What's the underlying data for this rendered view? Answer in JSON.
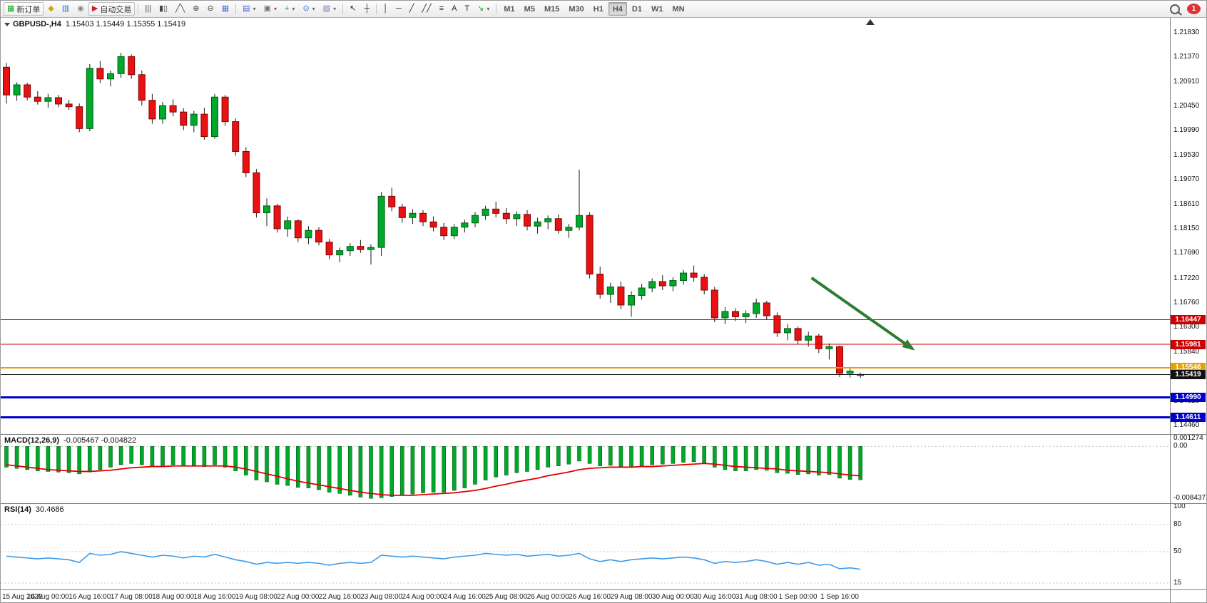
{
  "toolbar": {
    "badge": "1",
    "items": [
      {
        "name": "new-order-button",
        "glyph": "▦",
        "color": "#1fa32a",
        "label": "新订单",
        "framed": true
      },
      {
        "name": "market-watch-icon",
        "glyph": "◆",
        "color": "#d9a400"
      },
      {
        "name": "data-window-icon",
        "glyph": "▥",
        "color": "#3a6ad0"
      },
      {
        "name": "navigator-icon",
        "glyph": "◉",
        "color": "#8a8a8a"
      },
      {
        "name": "auto-trading-button",
        "glyph": "▶",
        "color": "#cf2222",
        "label": "自动交易",
        "framed": true
      },
      {
        "name": "toolbar-separator",
        "kind": "sep"
      },
      {
        "name": "bar-chart-icon",
        "glyph": "|||",
        "color": "#444"
      },
      {
        "name": "candlestick-chart-icon",
        "glyph": "▮▯",
        "color": "#444"
      },
      {
        "name": "line-chart-icon",
        "glyph": "╱╲",
        "color": "#444"
      },
      {
        "name": "zoom-in-icon",
        "glyph": "⊕",
        "color": "#444"
      },
      {
        "name": "zoom-out-icon",
        "glyph": "⊖",
        "color": "#444"
      },
      {
        "name": "tile-windows-icon",
        "glyph": "▦",
        "color": "#4a7ad0"
      },
      {
        "name": "toolbar-separator",
        "kind": "sep"
      },
      {
        "name": "new-chart-icon",
        "glyph": "▤",
        "color": "#3a6ad0",
        "dropdown": true
      },
      {
        "name": "profiles-icon",
        "glyph": "▣",
        "color": "#777777",
        "dropdown": true
      },
      {
        "name": "indicators-icon",
        "glyph": "+",
        "color": "#1da02a",
        "dropdown": true
      },
      {
        "name": "periods-icon",
        "glyph": "⊙",
        "color": "#3a6ad0",
        "dropdown": true
      },
      {
        "name": "templates-icon",
        "glyph": "▧",
        "color": "#8a6ac0",
        "dropdown": true
      },
      {
        "name": "toolbar-separator",
        "kind": "sep"
      },
      {
        "name": "cursor-icon",
        "glyph": "↖",
        "color": "#222"
      },
      {
        "name": "crosshair-icon",
        "glyph": "┼",
        "color": "#222"
      },
      {
        "name": "toolbar-separator",
        "kind": "sep"
      },
      {
        "name": "vertical-line-icon",
        "glyph": "│",
        "color": "#222"
      },
      {
        "name": "horizontal-line-icon",
        "glyph": "─",
        "color": "#222"
      },
      {
        "name": "trendline-icon",
        "glyph": "╱",
        "color": "#222"
      },
      {
        "name": "channel-icon",
        "glyph": "╱╱",
        "color": "#222"
      },
      {
        "name": "fibonacci-icon",
        "glyph": "≡",
        "color": "#222"
      },
      {
        "name": "text-icon",
        "glyph": "A",
        "color": "#222"
      },
      {
        "name": "label-icon",
        "glyph": "T",
        "color": "#222"
      },
      {
        "name": "arrows-icon",
        "glyph": "↘",
        "color": "#1da02a",
        "dropdown": true
      },
      {
        "name": "toolbar-separator",
        "kind": "sep"
      },
      {
        "name": "tf-m1",
        "kind": "tf",
        "label": "M1"
      },
      {
        "name": "tf-m5",
        "kind": "tf",
        "label": "M5"
      },
      {
        "name": "tf-m15",
        "kind": "tf",
        "label": "M15"
      },
      {
        "name": "tf-m30",
        "kind": "tf",
        "label": "M30"
      },
      {
        "name": "tf-h1",
        "kind": "tf",
        "label": "H1"
      },
      {
        "name": "tf-h4",
        "kind": "tf",
        "label": "H4",
        "active": true
      },
      {
        "name": "tf-d1",
        "kind": "tf",
        "label": "D1"
      },
      {
        "name": "tf-w1",
        "kind": "tf",
        "label": "W1"
      },
      {
        "name": "tf-mn",
        "kind": "tf",
        "label": "MN"
      }
    ]
  },
  "chart_data": [
    {
      "type": "candlestick",
      "symbol_period": "GBPUSD-,H4",
      "ohlc_text": "1.15403 1.15449 1.15355 1.15419",
      "ohlc": {
        "open": "1.15403",
        "high": "1.15449",
        "low": "1.15355",
        "close": "1.15419"
      },
      "ylim": [
        1.143,
        1.2212
      ],
      "layout": {
        "left": 8,
        "spacing": 14.6,
        "body_width": 9
      },
      "colors": {
        "up": "#00a92c",
        "down": "#e81212",
        "up_border": "#005f14",
        "down_border": "#7e0606",
        "wick": "#1a1a1a"
      },
      "y_ticks": [
        "1.21830",
        "1.21370",
        "1.20910",
        "1.20450",
        "1.19990",
        "1.19530",
        "1.19070",
        "1.18610",
        "1.18150",
        "1.17690",
        "1.17220",
        "1.16760",
        "1.16300",
        "1.15840",
        "1.14920",
        "1.14460"
      ],
      "x_labels": [
        {
          "i": 0,
          "t": "15 Aug 2022"
        },
        {
          "i": 4,
          "t": "16 Aug 00:00"
        },
        {
          "i": 8,
          "t": "16 Aug 16:00"
        },
        {
          "i": 12,
          "t": "17 Aug 08:00"
        },
        {
          "i": 16,
          "t": "18 Aug 00:00"
        },
        {
          "i": 20,
          "t": "18 Aug 16:00"
        },
        {
          "i": 24,
          "t": "19 Aug 08:00"
        },
        {
          "i": 28,
          "t": "22 Aug 00:00"
        },
        {
          "i": 32,
          "t": "22 Aug 16:00"
        },
        {
          "i": 36,
          "t": "23 Aug 08:00"
        },
        {
          "i": 40,
          "t": "24 Aug 00:00"
        },
        {
          "i": 44,
          "t": "24 Aug 16:00"
        },
        {
          "i": 48,
          "t": "25 Aug 08:00"
        },
        {
          "i": 52,
          "t": "26 Aug 00:00"
        },
        {
          "i": 56,
          "t": "26 Aug 16:00"
        },
        {
          "i": 60,
          "t": "29 Aug 08:00"
        },
        {
          "i": 64,
          "t": "30 Aug 00:00"
        },
        {
          "i": 68,
          "t": "30 Aug 16:00"
        },
        {
          "i": 72,
          "t": "31 Aug 08:00"
        },
        {
          "i": 76,
          "t": "1 Sep 00:00"
        },
        {
          "i": 80,
          "t": "1 Sep 16:00"
        }
      ],
      "hlines": [
        {
          "price": 1.16447,
          "label": "1.16447",
          "color": "#cc0000",
          "width": 1
        },
        {
          "price": 1.15981,
          "label": "1.15981",
          "color": "#cc0000",
          "width": 1
        },
        {
          "price": 1.15546,
          "label": "1.15546",
          "color": "#e6a000",
          "width": 2
        },
        {
          "price": 1.15419,
          "label": "1.15419",
          "color": "#111111",
          "width": 1,
          "current": true
        },
        {
          "price": 1.1499,
          "label": "1.14990",
          "color": "#0000cc",
          "width": 3
        },
        {
          "price": 1.14611,
          "label": "1.14611",
          "color": "#0000cc",
          "width": 3
        }
      ],
      "arrow": {
        "i1": 77.3,
        "p1": 1.1723,
        "i2": 87,
        "p2": 1.159,
        "color": "#2e7d32"
      },
      "candles": [
        [
          1.2118,
          1.2126,
          1.205,
          1.2066
        ],
        [
          1.2066,
          1.209,
          1.2055,
          1.2085
        ],
        [
          1.2085,
          1.2089,
          1.2056,
          1.2062
        ],
        [
          1.2062,
          1.2073,
          1.2048,
          1.2054
        ],
        [
          1.2054,
          1.2068,
          1.2042,
          1.2061
        ],
        [
          1.2061,
          1.2066,
          1.2043,
          1.2049
        ],
        [
          1.2049,
          1.2057,
          1.2038,
          1.2044
        ],
        [
          1.2044,
          1.205,
          1.1996,
          1.2003
        ],
        [
          1.2003,
          1.2124,
          1.1998,
          1.2116
        ],
        [
          1.2116,
          1.213,
          1.2088,
          1.2096
        ],
        [
          1.2096,
          1.2112,
          1.2082,
          1.2106
        ],
        [
          1.2106,
          1.2145,
          1.2098,
          1.2138
        ],
        [
          1.2138,
          1.2142,
          1.2096,
          1.2104
        ],
        [
          1.2104,
          1.2112,
          1.2046,
          1.2056
        ],
        [
          1.2056,
          1.2068,
          1.2012,
          1.2021
        ],
        [
          1.2021,
          1.2053,
          1.2012,
          1.2046
        ],
        [
          1.2046,
          1.2058,
          1.2026,
          1.2034
        ],
        [
          1.2034,
          1.2041,
          1.2,
          1.2009
        ],
        [
          1.2009,
          1.2036,
          1.1996,
          1.203
        ],
        [
          1.203,
          1.2042,
          1.1982,
          1.1988
        ],
        [
          1.1988,
          1.2068,
          1.1984,
          1.2062
        ],
        [
          1.2062,
          1.2066,
          1.2008,
          1.2016
        ],
        [
          1.2016,
          1.2022,
          1.1952,
          1.196
        ],
        [
          1.196,
          1.1968,
          1.1912,
          1.192
        ],
        [
          1.192,
          1.1927,
          1.1836,
          1.1845
        ],
        [
          1.1845,
          1.1872,
          1.182,
          1.1858
        ],
        [
          1.1858,
          1.1862,
          1.1808,
          1.1815
        ],
        [
          1.1815,
          1.1838,
          1.18,
          1.183
        ],
        [
          1.183,
          1.1833,
          1.179,
          1.1798
        ],
        [
          1.1798,
          1.182,
          1.1786,
          1.1812
        ],
        [
          1.1812,
          1.1818,
          1.1784,
          1.179
        ],
        [
          1.179,
          1.1796,
          1.1758,
          1.1766
        ],
        [
          1.1766,
          1.178,
          1.1752,
          1.1774
        ],
        [
          1.1774,
          1.1788,
          1.1764,
          1.1782
        ],
        [
          1.1782,
          1.1794,
          1.177,
          1.1776
        ],
        [
          1.1776,
          1.1786,
          1.1748,
          1.178
        ],
        [
          1.178,
          1.1884,
          1.1764,
          1.1876
        ],
        [
          1.1876,
          1.1892,
          1.1848,
          1.1856
        ],
        [
          1.1856,
          1.1862,
          1.1826,
          1.1836
        ],
        [
          1.1836,
          1.1852,
          1.1824,
          1.1844
        ],
        [
          1.1844,
          1.185,
          1.182,
          1.1828
        ],
        [
          1.1828,
          1.1838,
          1.181,
          1.1818
        ],
        [
          1.1818,
          1.1826,
          1.1794,
          1.1802
        ],
        [
          1.1802,
          1.1824,
          1.1796,
          1.1818
        ],
        [
          1.1818,
          1.1832,
          1.1808,
          1.1826
        ],
        [
          1.1826,
          1.1846,
          1.1818,
          1.184
        ],
        [
          1.184,
          1.1858,
          1.1832,
          1.1852
        ],
        [
          1.1852,
          1.1866,
          1.1836,
          1.1844
        ],
        [
          1.1844,
          1.1854,
          1.1824,
          1.1834
        ],
        [
          1.1834,
          1.1848,
          1.182,
          1.1842
        ],
        [
          1.1842,
          1.185,
          1.1812,
          1.182
        ],
        [
          1.182,
          1.1836,
          1.1806,
          1.1828
        ],
        [
          1.1828,
          1.184,
          1.1814,
          1.1834
        ],
        [
          1.1834,
          1.1842,
          1.1806,
          1.1812
        ],
        [
          1.1812,
          1.1824,
          1.1798,
          1.1818
        ],
        [
          1.1818,
          1.1926,
          1.1812,
          1.184
        ],
        [
          1.184,
          1.1846,
          1.1722,
          1.173
        ],
        [
          1.173,
          1.1744,
          1.1684,
          1.1692
        ],
        [
          1.1692,
          1.1714,
          1.1676,
          1.1706
        ],
        [
          1.1706,
          1.1716,
          1.1664,
          1.1672
        ],
        [
          1.1672,
          1.1698,
          1.165,
          1.169
        ],
        [
          1.169,
          1.1712,
          1.1682,
          1.1704
        ],
        [
          1.1704,
          1.1722,
          1.1696,
          1.1716
        ],
        [
          1.1716,
          1.1728,
          1.17,
          1.1708
        ],
        [
          1.1708,
          1.1724,
          1.1698,
          1.1718
        ],
        [
          1.1718,
          1.1738,
          1.171,
          1.1732
        ],
        [
          1.1732,
          1.1746,
          1.1716,
          1.1724
        ],
        [
          1.1724,
          1.173,
          1.1692,
          1.17
        ],
        [
          1.17,
          1.1706,
          1.164,
          1.1648
        ],
        [
          1.1648,
          1.1668,
          1.1636,
          1.166
        ],
        [
          1.166,
          1.1666,
          1.1642,
          1.165
        ],
        [
          1.165,
          1.1662,
          1.1638,
          1.1656
        ],
        [
          1.1656,
          1.1684,
          1.1648,
          1.1676
        ],
        [
          1.1676,
          1.168,
          1.1644,
          1.1652
        ],
        [
          1.1652,
          1.1658,
          1.1612,
          1.162
        ],
        [
          1.162,
          1.1636,
          1.1606,
          1.1628
        ],
        [
          1.1628,
          1.1632,
          1.1598,
          1.1606
        ],
        [
          1.1606,
          1.1622,
          1.1594,
          1.1614
        ],
        [
          1.1614,
          1.1618,
          1.1582,
          1.159
        ],
        [
          1.159,
          1.16,
          1.157,
          1.1594
        ],
        [
          1.1594,
          1.1596,
          1.1537,
          1.1544
        ],
        [
          1.1544,
          1.1556,
          1.1536,
          1.1548
        ],
        [
          1.15403,
          1.15449,
          1.15355,
          1.15419
        ]
      ]
    },
    {
      "type": "macd",
      "label": "MACD(12,26,9)",
      "values_text": "-0.005467 -0.004822",
      "ylim": [
        -0.0093,
        0.0019
      ],
      "ticks": [
        {
          "v": 0.001274,
          "t": "0.001274"
        },
        {
          "v": 0,
          "t": "0.00"
        },
        {
          "v": -0.008437,
          "t": "-0.008437"
        }
      ],
      "colors": {
        "histogram": "#00a92c",
        "histogram_border": "#005f14",
        "signal": "#e00000"
      },
      "histogram": [
        -0.0034,
        -0.0036,
        -0.0038,
        -0.004,
        -0.0041,
        -0.0042,
        -0.0043,
        -0.0045,
        -0.0042,
        -0.0038,
        -0.0034,
        -0.003,
        -0.0028,
        -0.003,
        -0.0033,
        -0.0032,
        -0.003,
        -0.0032,
        -0.0031,
        -0.0033,
        -0.003,
        -0.0034,
        -0.004,
        -0.0047,
        -0.0055,
        -0.0058,
        -0.0062,
        -0.0064,
        -0.0067,
        -0.0068,
        -0.0071,
        -0.0075,
        -0.0077,
        -0.008,
        -0.0083,
        -0.0085,
        -0.0084,
        -0.0082,
        -0.008,
        -0.0078,
        -0.0076,
        -0.0075,
        -0.0075,
        -0.0072,
        -0.0068,
        -0.0062,
        -0.0055,
        -0.005,
        -0.0047,
        -0.0043,
        -0.0041,
        -0.0038,
        -0.0034,
        -0.0032,
        -0.0029,
        -0.0024,
        -0.0028,
        -0.0032,
        -0.0031,
        -0.0033,
        -0.0034,
        -0.0032,
        -0.003,
        -0.0029,
        -0.0028,
        -0.0026,
        -0.0025,
        -0.0027,
        -0.0034,
        -0.0038,
        -0.004,
        -0.004,
        -0.0038,
        -0.0039,
        -0.0043,
        -0.0044,
        -0.0046,
        -0.0045,
        -0.0047,
        -0.0046,
        -0.0052,
        -0.0054,
        -0.005467
      ],
      "signal": [
        -0.003,
        -0.0032,
        -0.0034,
        -0.0036,
        -0.0038,
        -0.0039,
        -0.004,
        -0.0041,
        -0.0041,
        -0.004,
        -0.0039,
        -0.0037,
        -0.0035,
        -0.0034,
        -0.0033,
        -0.0033,
        -0.0032,
        -0.0032,
        -0.0032,
        -0.0032,
        -0.0032,
        -0.0032,
        -0.0034,
        -0.0037,
        -0.0041,
        -0.0045,
        -0.0049,
        -0.0053,
        -0.0057,
        -0.006,
        -0.0063,
        -0.0066,
        -0.0069,
        -0.0072,
        -0.0075,
        -0.0077,
        -0.0079,
        -0.008,
        -0.008,
        -0.008,
        -0.0079,
        -0.0078,
        -0.0077,
        -0.0076,
        -0.0074,
        -0.0072,
        -0.0069,
        -0.0065,
        -0.0062,
        -0.0058,
        -0.0055,
        -0.0052,
        -0.0048,
        -0.0045,
        -0.0042,
        -0.0038,
        -0.0036,
        -0.0035,
        -0.0034,
        -0.0034,
        -0.0034,
        -0.0033,
        -0.0033,
        -0.0032,
        -0.0031,
        -0.003,
        -0.0029,
        -0.0028,
        -0.0029,
        -0.0031,
        -0.0033,
        -0.0034,
        -0.0035,
        -0.0036,
        -0.0037,
        -0.0039,
        -0.004,
        -0.0041,
        -0.0042,
        -0.0043,
        -0.0045,
        -0.0047,
        -0.004822
      ]
    },
    {
      "type": "rsi",
      "label": "RSI(14)",
      "value_text": "30.4686",
      "ylim": [
        8,
        103
      ],
      "ticks": [
        {
          "v": 100,
          "t": "100"
        },
        {
          "v": 80,
          "t": "80"
        },
        {
          "v": 50,
          "t": "50"
        },
        {
          "v": 15,
          "t": "15"
        }
      ],
      "levels": [
        80,
        50,
        15
      ],
      "color": "#3d9be9",
      "values": [
        45,
        44,
        43,
        42,
        43,
        42,
        41,
        38,
        48,
        46,
        47,
        50,
        48,
        46,
        44,
        46,
        45,
        43,
        45,
        44,
        47,
        44,
        41,
        39,
        36,
        38,
        37,
        38,
        37,
        38,
        37,
        35,
        37,
        38,
        37,
        38,
        46,
        45,
        44,
        45,
        44,
        43,
        42,
        44,
        45,
        46,
        48,
        47,
        46,
        47,
        45,
        46,
        47,
        45,
        46,
        48,
        42,
        39,
        41,
        39,
        41,
        42,
        43,
        42,
        43,
        44,
        43,
        41,
        37,
        39,
        38,
        39,
        41,
        39,
        36,
        38,
        36,
        38,
        35,
        36,
        31,
        32,
        30.4686
      ]
    }
  ]
}
